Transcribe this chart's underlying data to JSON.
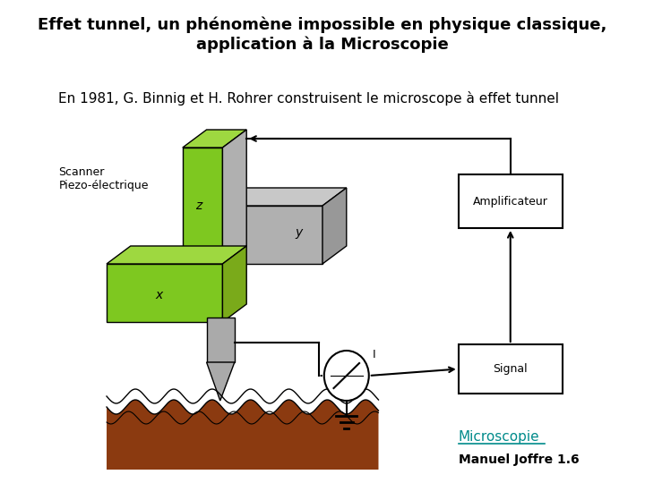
{
  "title_line1": "Effet tunnel, un phénomène impossible en physique classique,",
  "title_line2": "application à la Microscopie",
  "subtitle": "En 1981, G. Binnig et H. Rohrer construisent le microscope à effet tunnel",
  "label_scanner": "Scanner\nPiezo-électrique",
  "label_x": "x",
  "label_y": "y",
  "label_z": "z",
  "label_I": "I",
  "label_amplificateur": "Amplificateur",
  "label_signal": "Signal",
  "label_microscopie": "Microscopie",
  "label_manuel": "Manuel Joffre 1.6",
  "bg_color": "#ffffff",
  "green_color": "#7ec820",
  "gray_color": "#b0b0b0",
  "gray_dark": "#888888",
  "brown_color": "#8B3A10",
  "tip_color": "#aaaaaa",
  "box_color": "#ffffff",
  "microscopie_color": "#008B8B",
  "title_fontsize": 13,
  "subtitle_fontsize": 11
}
